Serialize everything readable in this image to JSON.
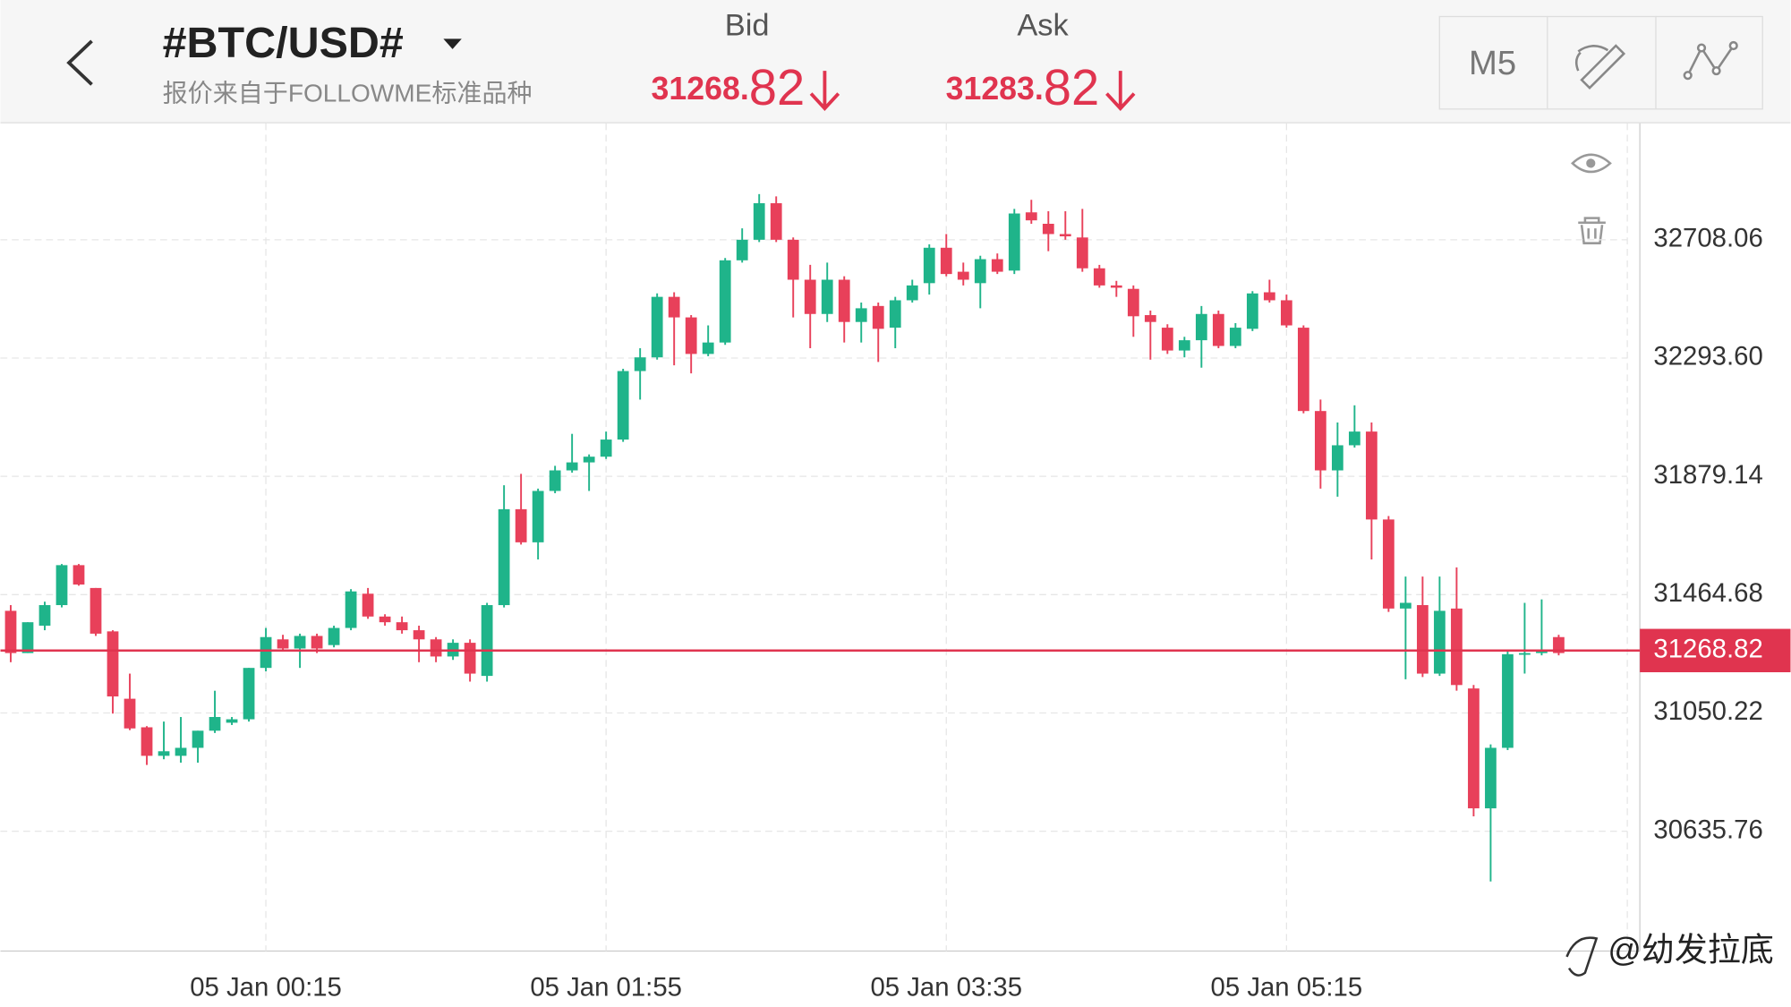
{
  "header": {
    "title": "#BTC/USD#",
    "subtitle": "报价来自于FOLLOWME标准品种",
    "bid_label": "Bid",
    "bid_main": "31268.",
    "bid_pips": "82",
    "ask_label": "Ask",
    "ask_main": "31283.",
    "ask_pips": "82",
    "timeframe": "M5"
  },
  "watermark": "@幼发拉底",
  "chart_data": {
    "type": "candlestick",
    "up_color": "#1fb48a",
    "down_color": "#e8405a",
    "open": [
      31408,
      31260,
      31356,
      31428,
      31568,
      31488,
      31336,
      31100,
      31000,
      30900,
      30900,
      30928,
      30988,
      31016,
      31028,
      31208,
      31308,
      31276,
      31320,
      31288,
      31348,
      31468,
      31388,
      31368,
      31340,
      31308,
      31248,
      31296,
      31180,
      31428,
      31764,
      31648,
      31828,
      31900,
      31928,
      31948,
      32008,
      32248,
      32296,
      32508,
      32436,
      32308,
      32348,
      32636,
      32708,
      32836,
      32708,
      32568,
      32448,
      32568,
      32420,
      32476,
      32400,
      32496,
      32556,
      32680,
      32596,
      32556,
      32640,
      32600,
      32804,
      32764,
      32728,
      32716,
      32608,
      32548,
      32536,
      32444,
      32400,
      32320,
      32356,
      32448,
      32336,
      32396,
      32524,
      32496,
      32400,
      32108,
      31900,
      31988,
      32036,
      31728,
      31416,
      31428,
      31188,
      31416,
      31136,
      30716,
      30928,
      31256,
      31260,
      31316
    ],
    "high": [
      31428,
      31368,
      31440,
      31572,
      31572,
      31488,
      31340,
      31188,
      31004,
      31020,
      31036,
      30988,
      31128,
      31036,
      31208,
      31348,
      31324,
      31328,
      31328,
      31356,
      31484,
      31488,
      31396,
      31388,
      31356,
      31316,
      31308,
      31308,
      31436,
      31848,
      31888,
      31836,
      31916,
      32028,
      31956,
      32036,
      32256,
      32328,
      32520,
      32524,
      32444,
      32408,
      32644,
      32748,
      32868,
      32860,
      32716,
      32620,
      32628,
      32580,
      32488,
      32488,
      32508,
      32568,
      32692,
      32728,
      32628,
      32652,
      32660,
      32816,
      32848,
      32808,
      32808,
      32816,
      32620,
      32564,
      32548,
      32460,
      32412,
      32368,
      32476,
      32460,
      32416,
      32528,
      32568,
      32516,
      32408,
      32148,
      32068,
      32128,
      32068,
      31740,
      31528,
      31528,
      31528,
      31560,
      31148,
      30940,
      31268,
      31436,
      31448,
      31324
    ],
    "low": [
      31228,
      31260,
      31340,
      31420,
      31496,
      31320,
      31048,
      30990,
      30868,
      30888,
      30876,
      30876,
      30980,
      31008,
      31020,
      31196,
      31268,
      31208,
      31260,
      31280,
      31340,
      31380,
      31356,
      31328,
      31228,
      31228,
      31236,
      31160,
      31160,
      31420,
      31640,
      31588,
      31820,
      31892,
      31828,
      31940,
      32000,
      32148,
      32288,
      32268,
      32240,
      32300,
      32340,
      32628,
      32700,
      32700,
      32436,
      32328,
      32420,
      32348,
      32348,
      32280,
      32328,
      32488,
      32516,
      32580,
      32548,
      32468,
      32588,
      32588,
      32764,
      32668,
      32708,
      32596,
      32540,
      32508,
      32368,
      32288,
      32308,
      32296,
      32260,
      32328,
      32328,
      32388,
      32488,
      32400,
      32100,
      31836,
      31808,
      31980,
      31588,
      31404,
      31168,
      31176,
      31180,
      31128,
      30688,
      30460,
      30920,
      31188,
      31252,
      31252
    ],
    "close": [
      31260,
      31368,
      31428,
      31568,
      31500,
      31328,
      31108,
      30996,
      30900,
      30916,
      30928,
      30988,
      31036,
      31028,
      31208,
      31316,
      31276,
      31320,
      31276,
      31348,
      31476,
      31388,
      31368,
      31340,
      31308,
      31248,
      31296,
      31188,
      31428,
      31764,
      31648,
      31828,
      31900,
      31928,
      31948,
      32008,
      32248,
      32296,
      32508,
      32436,
      32308,
      32348,
      32636,
      32708,
      32836,
      32708,
      32568,
      32448,
      32568,
      32420,
      32468,
      32396,
      32496,
      32548,
      32680,
      32588,
      32568,
      32640,
      32596,
      32800,
      32776,
      32728,
      32720,
      32608,
      32548,
      32540,
      32440,
      32420,
      32320,
      32356,
      32448,
      32336,
      32400,
      32520,
      32496,
      32408,
      32108,
      31900,
      31988,
      32036,
      31728,
      31416,
      31436,
      31188,
      31408,
      31148,
      30716,
      30928,
      31256,
      31260,
      31268,
      31260
    ],
    "ylim": [
      30216,
      33116
    ],
    "yticks": [
      30635.76,
      31050.22,
      31464.68,
      31879.14,
      {
        "value": 32293.6,
        "label": "32293.60"
      },
      32708.06
    ],
    "xticks": [
      {
        "value": 15,
        "label": "05 Jan 00:15"
      },
      {
        "value": 35,
        "label": "05 Jan 01:55"
      },
      {
        "value": 55,
        "label": "05 Jan 03:35"
      },
      {
        "value": 75,
        "label": "05 Jan 05:15"
      }
    ],
    "current_price": 31268.82,
    "current_color": "#e0344f",
    "grid": true
  }
}
